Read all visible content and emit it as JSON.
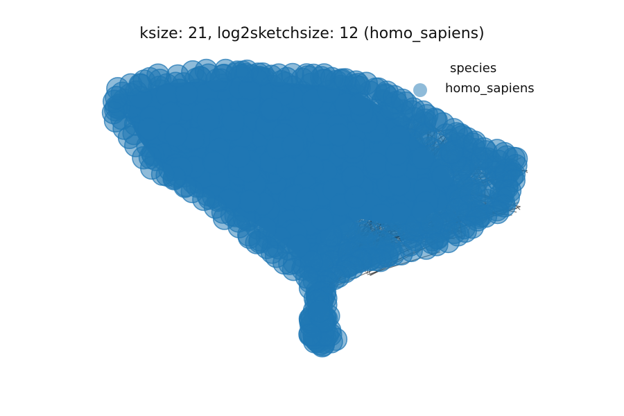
{
  "title": "ksize: 21, log2sketchsize: 12 (homo_sapiens)",
  "legend": {
    "title": "species",
    "items": [
      {
        "label": "homo_sapiens",
        "color": "#1f77b4"
      }
    ]
  },
  "graph": {
    "node_color": "#1f77b4",
    "node_alpha": 0.5,
    "edge_color": "#000000",
    "edge_alpha": 0.55
  }
}
